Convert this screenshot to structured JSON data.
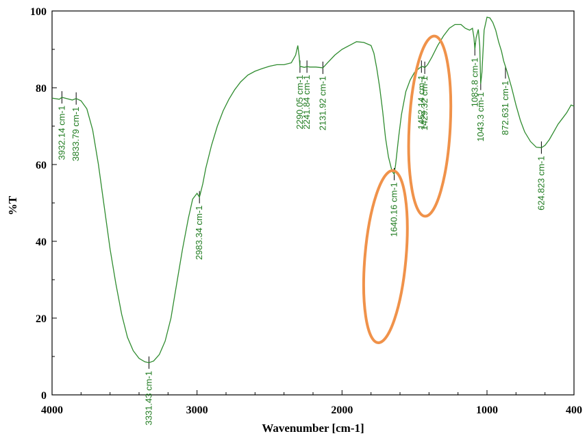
{
  "chart_data": {
    "type": "line",
    "xlabel": "Wavenumber [cm-1]",
    "ylabel": "%T",
    "xlim": [
      4000,
      400
    ],
    "ylim": [
      0,
      100
    ],
    "x_reversed": true,
    "grid": false,
    "x_ticks": [
      4000,
      3000,
      2000,
      1000,
      400
    ],
    "y_ticks": [
      0,
      20,
      40,
      60,
      80,
      100
    ],
    "line_color": "#2e8b2e",
    "label_color": "#1e7a1e",
    "highlight_color": "#f0924a",
    "series": [
      {
        "x": [
          4000,
          3950,
          3932.14,
          3900,
          3860,
          3833.79,
          3800,
          3760,
          3720,
          3680,
          3640,
          3600,
          3560,
          3520,
          3480,
          3440,
          3400,
          3360,
          3331.43,
          3300,
          3260,
          3220,
          3180,
          3140,
          3100,
          3060,
          3030,
          3000,
          2983.34,
          2960,
          2940,
          2900,
          2860,
          2820,
          2780,
          2740,
          2700,
          2650,
          2600,
          2550,
          2500,
          2450,
          2400,
          2350,
          2320,
          2305,
          2295,
          2290.05,
          2280,
          2260,
          2241.84,
          2220,
          2180,
          2131.92,
          2100,
          2050,
          2000,
          1950,
          1900,
          1850,
          1800,
          1780,
          1760,
          1740,
          1720,
          1700,
          1680,
          1660,
          1650,
          1640.16,
          1630,
          1610,
          1590,
          1560,
          1530,
          1500,
          1470,
          1452.14,
          1440,
          1429.32,
          1410,
          1380,
          1340,
          1300,
          1260,
          1220,
          1180,
          1150,
          1120,
          1100,
          1090,
          1083.8,
          1075,
          1060,
          1050,
          1043.3,
          1035,
          1020,
          1000,
          980,
          960,
          940,
          920,
          900,
          885,
          872.631,
          860,
          830,
          800,
          770,
          740,
          700,
          660,
          624.823,
          600,
          570,
          540,
          510,
          480,
          450,
          420,
          400
        ],
        "y": [
          77.3,
          77.0,
          77.5,
          77.2,
          76.8,
          77.2,
          76.6,
          74.5,
          69,
          60,
          49,
          38,
          29,
          21,
          15,
          11.5,
          9.5,
          8.6,
          8.4,
          8.8,
          10.5,
          14,
          20,
          29,
          38,
          46,
          51,
          52.5,
          51.5,
          55,
          59,
          65,
          70,
          74,
          77,
          79.5,
          81.5,
          83.3,
          84.3,
          85,
          85.6,
          86,
          86,
          86.5,
          88.5,
          91,
          88,
          85.5,
          85.5,
          85.3,
          85.5,
          85.4,
          85.4,
          85.2,
          86.5,
          88.5,
          90,
          91,
          92,
          91.8,
          91,
          89,
          85,
          80,
          74,
          67,
          62,
          59,
          58,
          57.5,
          60,
          67,
          73,
          79,
          82,
          84,
          85,
          85.5,
          85.5,
          85.2,
          86,
          88,
          91,
          93.5,
          95.5,
          96.5,
          96.5,
          95.5,
          95,
          95.5,
          93,
          90,
          93,
          95.2,
          91,
          81,
          84,
          95,
          98.4,
          98.2,
          97,
          95,
          92,
          89.5,
          87,
          85.5,
          84,
          80,
          75.5,
          71.5,
          68.5,
          66,
          64.5,
          64.4,
          65,
          66.5,
          68.5,
          70.5,
          72,
          73.5,
          75.5,
          75.2
        ]
      }
    ],
    "peaks": [
      {
        "x": 3932.14,
        "y": 77.5,
        "label": "3932.14 cm-1"
      },
      {
        "x": 3833.79,
        "y": 77.2,
        "label": "3833.79 cm-1"
      },
      {
        "x": 3331.43,
        "y": 8.4,
        "label": "3331.43 cm-1"
      },
      {
        "x": 2983.34,
        "y": 51.5,
        "label": "2983.34 cm-1"
      },
      {
        "x": 2290.05,
        "y": 85.5,
        "label": "2290.05 cm-1"
      },
      {
        "x": 2241.84,
        "y": 85.5,
        "label": "2241.84 cm-1"
      },
      {
        "x": 2131.92,
        "y": 85.2,
        "label": "2131.92 cm-1"
      },
      {
        "x": 1640.16,
        "y": 57.5,
        "label": "1640.16 cm-1"
      },
      {
        "x": 1452.14,
        "y": 85.5,
        "label": "1452.14 cm-1"
      },
      {
        "x": 1429.32,
        "y": 85.2,
        "label": "1429.32 cm-1"
      },
      {
        "x": 1083.8,
        "y": 90,
        "label": "1083.8 cm-1"
      },
      {
        "x": 1043.3,
        "y": 81,
        "label": "1043.3 cm-1"
      },
      {
        "x": 872.631,
        "y": 84,
        "label": "872.631 cm-1"
      },
      {
        "x": 624.823,
        "y": 64.4,
        "label": "624.823 cm-1"
      }
    ],
    "highlights": [
      {
        "cx": 1700,
        "cy": 36,
        "rx": 230,
        "ry": 22.5,
        "angle": 5
      },
      {
        "cx": 1395,
        "cy": 70,
        "rx": 160,
        "ry": 23.5,
        "angle": 3
      }
    ]
  }
}
